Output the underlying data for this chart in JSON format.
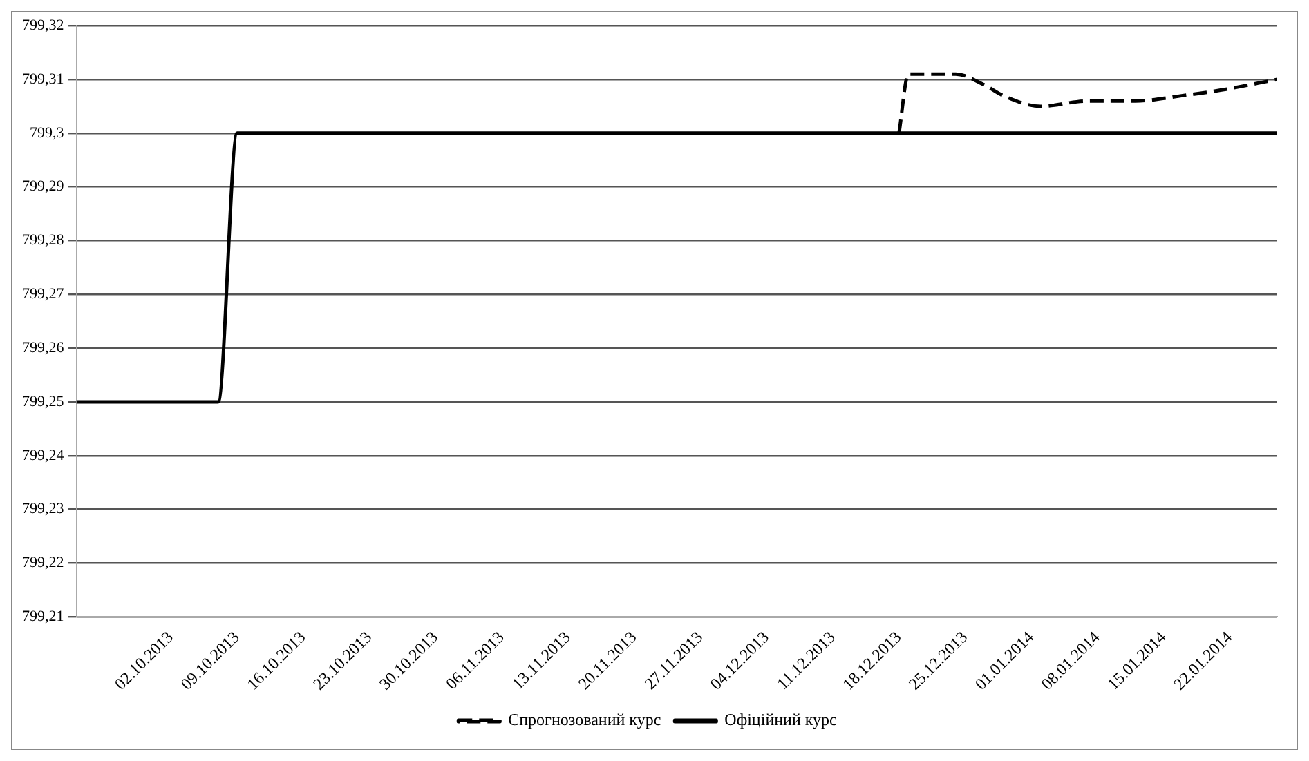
{
  "chart_data": {
    "type": "line",
    "series": [
      {
        "name": "Спрогнозований курс",
        "color": "#000000",
        "line_style": "dashed",
        "x": [
          "2013-12-18",
          "2013-12-19",
          "2013-12-24",
          "2013-12-27",
          "2013-12-29",
          "2014-01-02",
          "2014-01-07",
          "2014-01-12",
          "2014-01-17",
          "2014-01-21",
          "2014-01-27"
        ],
        "values": [
          799.3,
          799.311,
          799.311,
          799.309,
          799.307,
          799.305,
          799.306,
          799.306,
          799.307,
          799.308,
          799.31
        ]
      },
      {
        "name": "Офіційний курс",
        "color": "#000000",
        "line_style": "solid",
        "x": [
          "2013-09-22",
          "2013-10-07",
          "2013-10-09",
          "2014-01-27"
        ],
        "values": [
          799.25,
          799.25,
          799.3,
          799.3
        ]
      }
    ],
    "xlim": [
      "2013-09-22",
      "2014-01-27"
    ],
    "xticks": [
      {
        "value": "2013-10-02",
        "label": "02.10.2013"
      },
      {
        "value": "2013-10-09",
        "label": "09.10.2013"
      },
      {
        "value": "2013-10-16",
        "label": "16.10.2013"
      },
      {
        "value": "2013-10-23",
        "label": "23.10.2013"
      },
      {
        "value": "2013-10-30",
        "label": "30.10.2013"
      },
      {
        "value": "2013-11-06",
        "label": "06.11.2013"
      },
      {
        "value": "2013-11-13",
        "label": "13.11.2013"
      },
      {
        "value": "2013-11-20",
        "label": "20.11.2013"
      },
      {
        "value": "2013-11-27",
        "label": "27.11.2013"
      },
      {
        "value": "2013-12-04",
        "label": "04.12.2013"
      },
      {
        "value": "2013-12-11",
        "label": "11.12.2013"
      },
      {
        "value": "2013-12-18",
        "label": "18.12.2013"
      },
      {
        "value": "2013-12-25",
        "label": "25.12.2013"
      },
      {
        "value": "2014-01-01",
        "label": "01.01.2014"
      },
      {
        "value": "2014-01-08",
        "label": "08.01.2014"
      },
      {
        "value": "2014-01-15",
        "label": "15.01.2014"
      },
      {
        "value": "2014-01-22",
        "label": "22.01.2014"
      }
    ],
    "ylim": [
      799.21,
      799.32
    ],
    "yticks": [
      {
        "value": 799.21,
        "label": "799,21"
      },
      {
        "value": 799.22,
        "label": "799,22"
      },
      {
        "value": 799.23,
        "label": "799,23"
      },
      {
        "value": 799.24,
        "label": "799,24"
      },
      {
        "value": 799.25,
        "label": "799,25"
      },
      {
        "value": 799.26,
        "label": "799,26"
      },
      {
        "value": 799.27,
        "label": "799,27"
      },
      {
        "value": 799.28,
        "label": "799,28"
      },
      {
        "value": 799.29,
        "label": "799,29"
      },
      {
        "value": 799.3,
        "label": "799,3"
      },
      {
        "value": 799.31,
        "label": "799,31"
      },
      {
        "value": 799.32,
        "label": "799,32"
      }
    ],
    "grid": "y",
    "legend": "bottom",
    "marker": "none"
  }
}
